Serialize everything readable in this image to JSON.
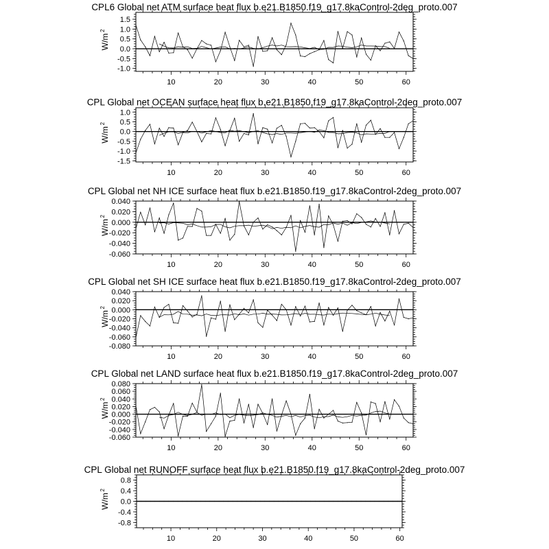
{
  "chart_data": [
    {
      "type": "line",
      "title": "CPL6 Global net ATM surface heat flux b.e21.B1850.f19_g17.8kaControl-2deg_proto.007",
      "ylabel": "W/m",
      "ylabel_sup": "2",
      "xlim": [
        2.5,
        61.5
      ],
      "ylim": [
        -1.15,
        1.85
      ],
      "xticks": [
        10,
        20,
        30,
        40,
        50,
        60
      ],
      "yticks": [
        "1.5",
        "1.0",
        "0.5",
        "0.0",
        "-0.5",
        "-1.0"
      ],
      "reference_line": 0,
      "x_start": 2.5,
      "values": [
        1.2,
        0.45,
        0.1,
        -0.35,
        0.63,
        -0.15,
        0.33,
        -0.22,
        -0.2,
        0.8,
        0.1,
        -0.05,
        -0.48,
        0.0,
        0.42,
        0.25,
        0.18,
        -0.66,
        -0.1,
        0.84,
        0.1,
        -0.6,
        0.43,
        0.1,
        0.18,
        -0.9,
        0.62,
        -0.13,
        -0.1,
        0.56,
        -0.05,
        -0.3,
        0.2,
        1.3,
        0.7,
        -0.37,
        -0.4,
        -0.25,
        -0.15,
        -0.05,
        0.42,
        -0.55,
        -0.72,
        0.88,
        0.02,
        0.87,
        0.7,
        -0.42,
        0.55,
        -0.28,
        -0.58,
        0.15,
        -0.1,
        0.28,
        0.35,
        0.02,
        0.85,
        0.4,
        -0.35,
        -0.5
      ]
    },
    {
      "type": "line",
      "title": "CPL Global net OCEAN surface heat flux b.e21.B1850.f19_g17.8kaControl-2deg_proto.007",
      "ylabel": "W/m",
      "ylabel_sup": "2",
      "xlim": [
        2.5,
        61.5
      ],
      "ylim": [
        -1.56,
        1.22
      ],
      "xticks": [
        10,
        20,
        30,
        40,
        50,
        60
      ],
      "yticks": [
        "1.0",
        "0.5",
        "0.0",
        "-0.5",
        "-1.0",
        "-1.5"
      ],
      "reference_line": 0,
      "x_start": 2.5,
      "values": [
        -1.1,
        -0.4,
        0.05,
        0.37,
        -0.63,
        0.17,
        -0.25,
        0.2,
        0.18,
        -0.68,
        -0.05,
        0.05,
        0.48,
        0.0,
        -0.53,
        -0.1,
        -0.12,
        0.7,
        0.1,
        -0.73,
        0.05,
        0.68,
        -0.5,
        -0.1,
        -0.17,
        0.92,
        -0.63,
        0.2,
        0.12,
        -0.58,
        0.17,
        0.32,
        -0.25,
        -1.3,
        -0.5,
        0.4,
        0.42,
        0.18,
        0.2,
        0.0,
        -0.32,
        0.55,
        0.72,
        -0.83,
        0.05,
        -0.85,
        -0.65,
        0.4,
        -0.55,
        0.33,
        0.58,
        -0.15,
        0.15,
        -0.3,
        -0.3,
        -0.05,
        -0.88,
        -0.3,
        0.4,
        0.55
      ]
    },
    {
      "type": "line",
      "title": "CPL Global net NH ICE surface heat flux b.e21.B1850.f19_g17.8kaControl-2deg_proto.007",
      "ylabel": "W/m",
      "ylabel_sup": "2",
      "xlim": [
        2.5,
        61.5
      ],
      "ylim": [
        -0.06,
        0.04
      ],
      "xticks": [
        10,
        20,
        30,
        40,
        50,
        60
      ],
      "yticks": [
        "0.040",
        "0.020",
        "0.000",
        "-0.020",
        "-0.040",
        "-0.060"
      ],
      "reference_line": 0,
      "x_start": 2.5,
      "values": [
        -0.012,
        0.019,
        -0.005,
        0.027,
        -0.018,
        0.008,
        -0.021,
        0.014,
        0.036,
        -0.034,
        -0.03,
        -0.008,
        -0.008,
        0.026,
        0.021,
        -0.025,
        -0.025,
        -0.004,
        -0.021,
        0.007,
        -0.034,
        -0.023,
        0.039,
        -0.007,
        -0.024,
        0.0,
        0.008,
        -0.013,
        -0.005,
        -0.009,
        -0.016,
        -0.024,
        -0.01,
        0.013,
        -0.055,
        0.003,
        -0.019,
        0.031,
        -0.024,
        0.034,
        -0.048,
        0.012,
        -0.005,
        -0.036,
        0.002,
        0.003,
        -0.003,
        0.016,
        0.009,
        -0.004,
        -0.009,
        0.007,
        -0.008,
        0.018,
        -0.024,
        0.022,
        -0.022,
        -0.004,
        -0.002,
        -0.01
      ]
    },
    {
      "type": "line",
      "title": "CPL Global net SH ICE surface heat flux b.e21.B1850.f19_g17.8kaControl-2deg_proto.007",
      "ylabel": "W/m",
      "ylabel_sup": "2",
      "xlim": [
        2.5,
        61.5
      ],
      "ylim": [
        -0.08,
        0.04
      ],
      "xticks": [
        10,
        20,
        30,
        40,
        50,
        60
      ],
      "yticks": [
        "0.040",
        "0.020",
        "0.000",
        "-0.020",
        "-0.040",
        "-0.060",
        "-0.080"
      ],
      "reference_line": 0,
      "x_start": 2.5,
      "values": [
        -0.062,
        -0.013,
        -0.026,
        -0.036,
        0.006,
        -0.017,
        0.005,
        0.012,
        -0.029,
        -0.03,
        0.009,
        -0.003,
        -0.016,
        -0.01,
        0.031,
        -0.059,
        -0.018,
        -0.021,
        0.019,
        -0.048,
        0.011,
        -0.022,
        -0.01,
        0.003,
        -0.007,
        0.022,
        -0.029,
        -0.039,
        -0.001,
        -0.012,
        -0.024,
        0.012,
        0.0,
        -0.034,
        0.007,
        -0.014,
        0.008,
        -0.027,
        -0.026,
        0.015,
        -0.034,
        0.005,
        -0.012,
        0.004,
        -0.048,
        -0.001,
        0.01,
        -0.002,
        -0.007,
        -0.011,
        0.007,
        -0.036,
        -0.006,
        -0.025,
        -0.003,
        -0.034,
        0.024,
        -0.017,
        -0.02,
        -0.018
      ]
    },
    {
      "type": "line",
      "title": "CPL Global net LAND surface heat flux b.e21.B1850.f19_g17.8kaControl-2deg_proto.007",
      "ylabel": "W/m",
      "ylabel_sup": "2",
      "xlim": [
        2.5,
        61.5
      ],
      "ylim": [
        -0.06,
        0.08
      ],
      "xticks": [
        10,
        20,
        30,
        40,
        50,
        60
      ],
      "yticks": [
        "0.080",
        "0.060",
        "0.040",
        "0.020",
        "0.000",
        "-0.020",
        "-0.040",
        "-0.060"
      ],
      "reference_line": 0,
      "x_start": 2.5,
      "values": [
        0.022,
        -0.051,
        -0.02,
        0.012,
        0.018,
        0.006,
        -0.038,
        -0.002,
        0.028,
        -0.057,
        -0.005,
        -0.005,
        0.029,
        0.005,
        0.077,
        -0.045,
        -0.025,
        -0.005,
        0.055,
        -0.058,
        -0.018,
        -0.016,
        0.04,
        -0.023,
        0.026,
        -0.035,
        0.026,
        0.002,
        -0.027,
        0.04,
        -0.044,
        -0.002,
        0.035,
        0.0,
        -0.055,
        -0.025,
        -0.01,
        0.052,
        -0.038,
        0.013,
        -0.01,
        0.0,
        0.01,
        -0.018,
        -0.023,
        -0.022,
        -0.021,
        0.031,
        0.003,
        -0.054,
        0.032,
        0.028,
        -0.02,
        0.033,
        -0.013,
        0.038,
        0.021,
        -0.01,
        -0.022,
        -0.025
      ]
    },
    {
      "type": "line",
      "title": "CPL Global net RUNOFF surface heat flux b.e21.B1850.f19_g17.8kaControl-2deg_proto.007",
      "ylabel": "W/m",
      "ylabel_sup": "2",
      "xlim": [
        2.5,
        60.5
      ],
      "ylim": [
        -1.0,
        1.0
      ],
      "xticks": [
        10,
        20,
        30,
        40,
        50,
        60
      ],
      "yticks": [
        "0.8",
        "0.4",
        "0.0",
        "-0.4",
        "-0.8"
      ],
      "reference_line": 0,
      "x_start": 2.5,
      "values": [
        0,
        0,
        0,
        0,
        0,
        0,
        0,
        0,
        0,
        0,
        0,
        0,
        0,
        0,
        0,
        0,
        0,
        0,
        0,
        0,
        0,
        0,
        0,
        0,
        0,
        0,
        0,
        0,
        0,
        0,
        0,
        0,
        0,
        0,
        0,
        0,
        0,
        0,
        0,
        0,
        0,
        0,
        0,
        0,
        0,
        0,
        0,
        0,
        0,
        0,
        0,
        0,
        0,
        0,
        0,
        0,
        0,
        0,
        0
      ]
    }
  ],
  "colors": {
    "line": "#000000",
    "background": "#ffffff"
  }
}
